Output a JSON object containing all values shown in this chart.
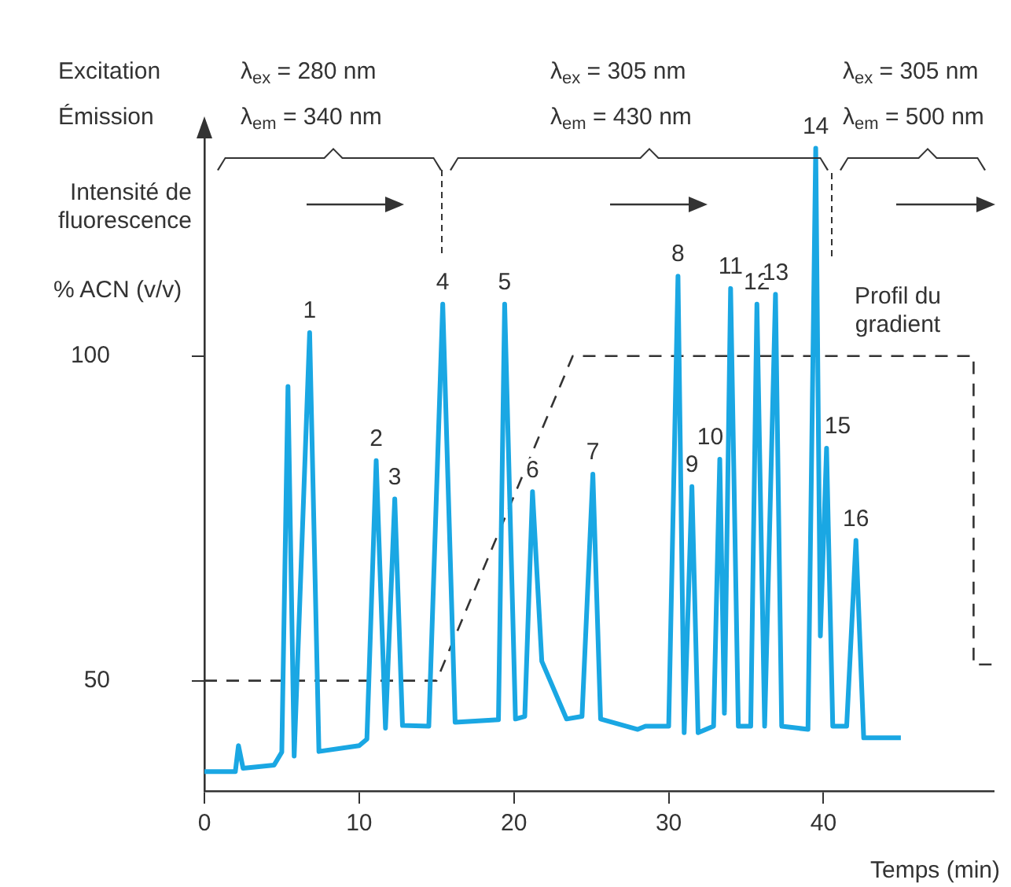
{
  "chart_data": {
    "type": "line",
    "xlabel": "Temps (min)",
    "ylabel": "% ACN (v/v)",
    "xlim": [
      0,
      51
    ],
    "ylim": [
      33,
      134
    ],
    "xticks": [
      0,
      10,
      20,
      30,
      40
    ],
    "yticks": [
      50,
      100
    ],
    "marker": "none",
    "series": [
      {
        "color": "#1aa7e3",
        "line_style": "solid",
        "x": [
          0,
          2,
          2.2,
          2.5,
          4.5,
          5,
          5.4,
          5.8,
          6.8,
          7.4,
          10,
          10.5,
          11.1,
          11.7,
          12.3,
          12.8,
          14.5,
          15.4,
          16.2,
          19,
          19.4,
          20.1,
          20.7,
          21.2,
          21.8,
          23.4,
          24.4,
          25.1,
          25.6,
          28,
          28.5,
          30,
          30.6,
          31,
          31.5,
          31.9,
          32.9,
          33.3,
          33.6,
          34,
          34.5,
          35.3,
          35.7,
          36.2,
          36.9,
          37.3,
          39,
          39.5,
          39.8,
          40.2,
          40.6,
          41.5,
          42.1,
          42.6,
          45
        ],
        "values": [
          36,
          36,
          40,
          36.5,
          37,
          39,
          95.3,
          38.4,
          103.6,
          39.1,
          40,
          41,
          83.9,
          42.7,
          78,
          43.1,
          43,
          108,
          43.6,
          44,
          108,
          44.1,
          44.5,
          79.1,
          53,
          44.1,
          44.5,
          81.8,
          44.1,
          42.5,
          43,
          43,
          112.3,
          42,
          79.9,
          42,
          43,
          84.1,
          45,
          110.4,
          43,
          43,
          108,
          43,
          109.5,
          43,
          42.5,
          132,
          56.9,
          85.8,
          43,
          43,
          71.6,
          41.2,
          41.2
        ]
      },
      {
        "color": "#333333",
        "line_style": "dashed",
        "x": [
          0,
          15,
          23.8,
          49.7,
          49.7,
          51
        ],
        "values": [
          50,
          50,
          100,
          100,
          52.5,
          52.5
        ]
      }
    ],
    "annotations": [
      "Excitation",
      "Émission",
      "λ$_{ex}$ = 280 nm",
      "λ$_{em}$ = 340 nm",
      "λ$_{ex}$ = 305 nm",
      "λ$_{em}$ = 430 nm",
      "λ$_{ex}$ = 305 nm",
      "λ$_{em}$ = 500 nm",
      "Intensité de fluorescence",
      "Profil du gradient",
      {
        "text": "1",
        "x": 6.8,
        "y": 103.6
      },
      {
        "text": "2",
        "x": 11.1,
        "y": 83.9
      },
      {
        "text": "3",
        "x": 12.3,
        "y": 78
      },
      {
        "text": "4",
        "x": 15.4,
        "y": 108
      },
      {
        "text": "5",
        "x": 19.4,
        "y": 108
      },
      {
        "text": "6",
        "x": 21.2,
        "y": 79.1
      },
      {
        "text": "7",
        "x": 25.1,
        "y": 81.8
      },
      {
        "text": "8",
        "x": 30.6,
        "y": 112.3
      },
      {
        "text": "9",
        "x": 31.5,
        "y": 79.9
      },
      {
        "text": "10",
        "x": 33.3,
        "y": 84.1
      },
      {
        "text": "11",
        "x": 34,
        "y": 110.4
      },
      {
        "text": "12",
        "x": 35.7,
        "y": 108
      },
      {
        "text": "13",
        "x": 36.9,
        "y": 109.5
      },
      {
        "text": "14",
        "x": 39.5,
        "y": 132
      },
      {
        "text": "15",
        "x": 40.2,
        "y": 85.8
      },
      {
        "text": "16",
        "x": 42.1,
        "y": 71.6
      }
    ]
  }
}
